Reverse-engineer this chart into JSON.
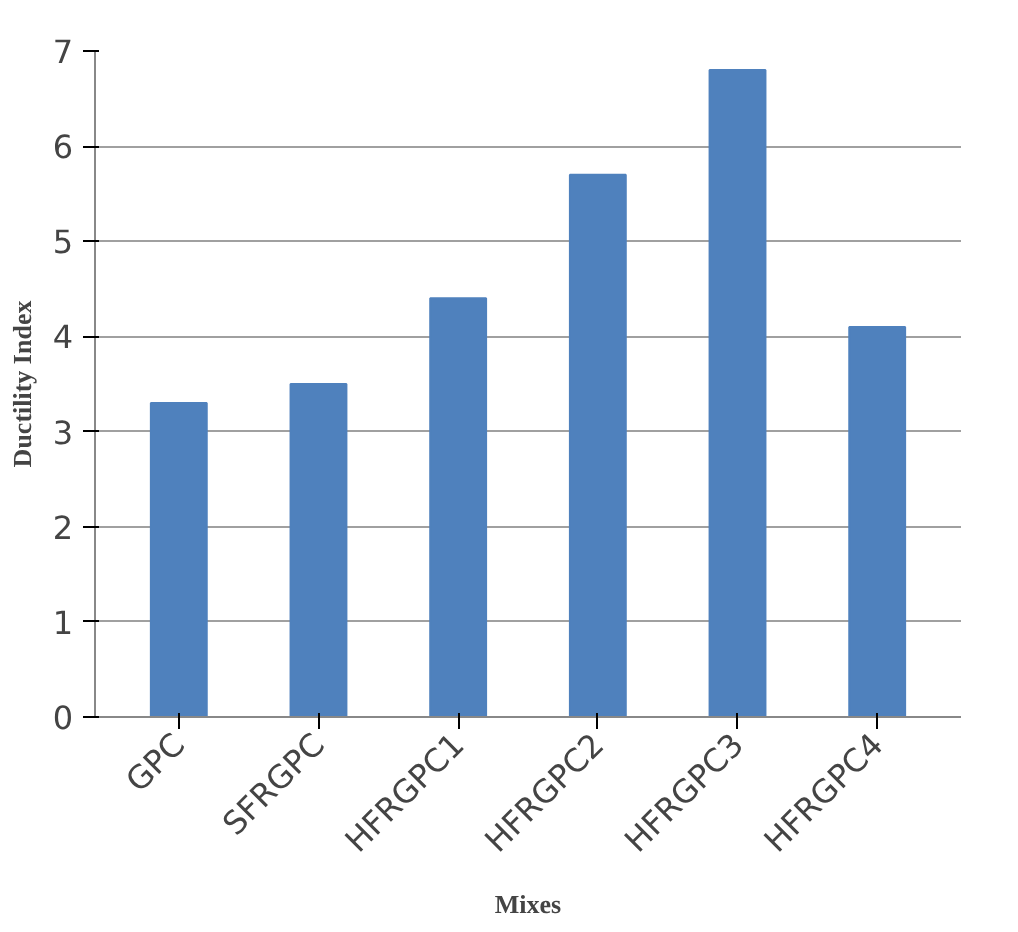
{
  "chart_data": {
    "type": "bar",
    "xlabel": "Mixes",
    "ylabel": "Ductility Index",
    "categories": [
      "GPC",
      "SFRGPC",
      "HFRGPC1",
      "HFRGPC2",
      "HFRGPC3",
      "HFRGPC4"
    ],
    "values": [
      3.3,
      3.5,
      4.4,
      5.7,
      6.8,
      4.1
    ],
    "color": "#4f81bd",
    "ylim": [
      0,
      7
    ],
    "yticks": [
      0,
      1,
      2,
      3,
      4,
      5,
      6,
      7
    ],
    "grid": "y"
  }
}
